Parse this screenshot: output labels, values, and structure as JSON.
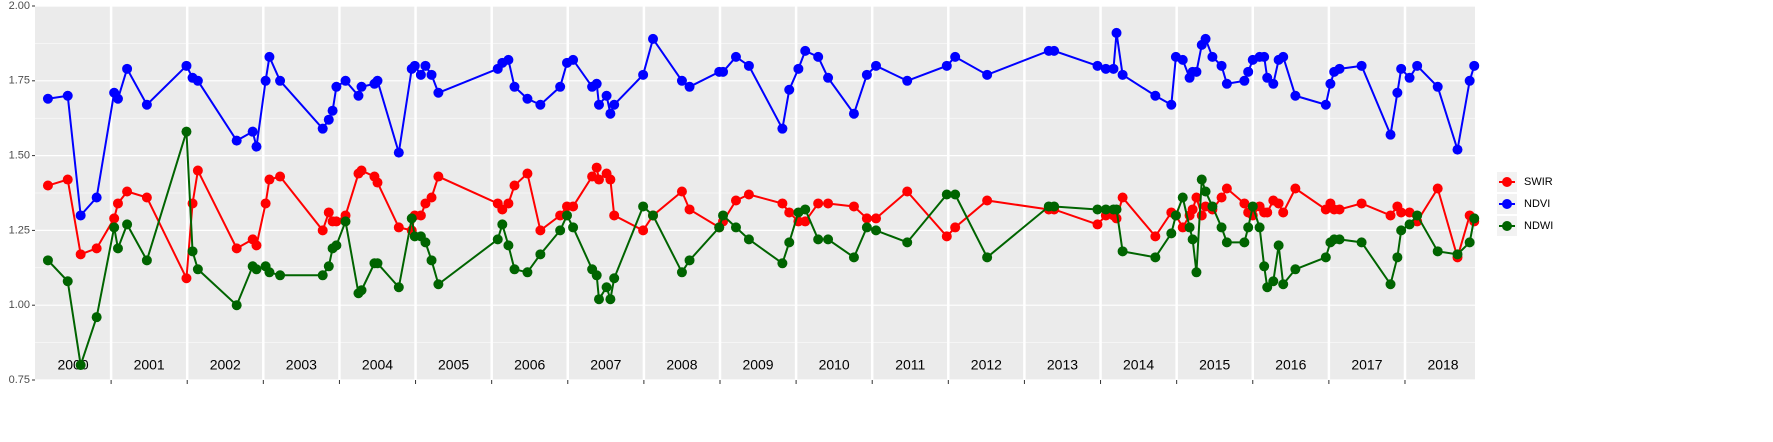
{
  "chart_data": {
    "type": "line",
    "x": [
      2000.17,
      2000.43,
      2000.6,
      2000.81,
      2001.04,
      2001.09,
      2001.21,
      2001.47,
      2001.99,
      2002.07,
      2002.14,
      2002.65,
      2002.86,
      2002.91,
      2003.03,
      2003.08,
      2003.22,
      2003.78,
      2003.86,
      2003.91,
      2003.96,
      2004.08,
      2004.25,
      2004.29,
      2004.46,
      2004.5,
      2004.78,
      2004.95,
      2004.99,
      2005.07,
      2005.13,
      2005.21,
      2005.3,
      2006.08,
      2006.14,
      2006.22,
      2006.3,
      2006.47,
      2006.64,
      2006.9,
      2006.99,
      2007.07,
      2007.32,
      2007.38,
      2007.41,
      2007.51,
      2007.56,
      2007.61,
      2007.99,
      2008.12,
      2008.5,
      2008.6,
      2008.99,
      2009.04,
      2009.21,
      2009.38,
      2009.82,
      2009.91,
      2010.03,
      2010.12,
      2010.29,
      2010.42,
      2010.76,
      2010.93,
      2011.05,
      2011.46,
      2011.98,
      2012.09,
      2012.51,
      2013.32,
      2013.39,
      2013.96,
      2014.07,
      2014.17,
      2014.21,
      2014.29,
      2014.72,
      2014.93,
      2014.99,
      2015.08,
      2015.17,
      2015.21,
      2015.26,
      2015.33,
      2015.38,
      2015.47,
      2015.59,
      2015.66,
      2015.89,
      2015.94,
      2016.0,
      2016.09,
      2016.15,
      2016.19,
      2016.27,
      2016.34,
      2016.4,
      2016.56,
      2016.96,
      2017.02,
      2017.07,
      2017.14,
      2017.43,
      2017.81,
      2017.9,
      2017.95,
      2018.06,
      2018.16,
      2018.43,
      2018.69,
      2018.85,
      2018.91
    ],
    "series": [
      {
        "name": "SWIR",
        "color": "#ff0000",
        "values": [
          1.4,
          1.42,
          1.17,
          1.19,
          1.29,
          1.34,
          1.38,
          1.36,
          1.09,
          1.34,
          1.45,
          1.19,
          1.22,
          1.2,
          1.34,
          1.42,
          1.43,
          1.25,
          1.31,
          1.28,
          1.28,
          1.3,
          1.44,
          1.45,
          1.43,
          1.41,
          1.26,
          1.25,
          1.3,
          1.3,
          1.34,
          1.36,
          1.43,
          1.34,
          1.32,
          1.34,
          1.4,
          1.44,
          1.25,
          1.3,
          1.33,
          1.33,
          1.43,
          1.46,
          1.42,
          1.44,
          1.42,
          1.3,
          1.25,
          1.3,
          1.38,
          1.32,
          1.26,
          1.28,
          1.35,
          1.37,
          1.34,
          1.31,
          1.28,
          1.28,
          1.34,
          1.34,
          1.33,
          1.29,
          1.29,
          1.38,
          1.23,
          1.26,
          1.35,
          1.32,
          1.32,
          1.27,
          1.3,
          1.3,
          1.29,
          1.36,
          1.23,
          1.31,
          1.3,
          1.26,
          1.3,
          1.32,
          1.36,
          1.3,
          1.33,
          1.32,
          1.36,
          1.39,
          1.34,
          1.31,
          1.3,
          1.33,
          1.31,
          1.31,
          1.35,
          1.34,
          1.31,
          1.39,
          1.32,
          1.34,
          1.32,
          1.32,
          1.34,
          1.3,
          1.33,
          1.31,
          1.31,
          1.28,
          1.39,
          1.16,
          1.3,
          1.28
        ]
      },
      {
        "name": "NDVI",
        "color": "#0000ff",
        "values": [
          1.69,
          1.7,
          1.3,
          1.36,
          1.71,
          1.69,
          1.79,
          1.67,
          1.8,
          1.76,
          1.75,
          1.55,
          1.58,
          1.53,
          1.75,
          1.83,
          1.75,
          1.59,
          1.62,
          1.65,
          1.73,
          1.75,
          1.7,
          1.73,
          1.74,
          1.75,
          1.51,
          1.79,
          1.8,
          1.77,
          1.8,
          1.77,
          1.71,
          1.79,
          1.81,
          1.82,
          1.73,
          1.69,
          1.67,
          1.73,
          1.81,
          1.82,
          1.73,
          1.74,
          1.67,
          1.7,
          1.64,
          1.67,
          1.77,
          1.89,
          1.75,
          1.73,
          1.78,
          1.78,
          1.83,
          1.8,
          1.59,
          1.72,
          1.79,
          1.85,
          1.83,
          1.76,
          1.64,
          1.77,
          1.8,
          1.75,
          1.8,
          1.83,
          1.77,
          1.85,
          1.85,
          1.8,
          1.79,
          1.79,
          1.91,
          1.77,
          1.7,
          1.67,
          1.83,
          1.82,
          1.76,
          1.78,
          1.78,
          1.87,
          1.89,
          1.83,
          1.8,
          1.74,
          1.75,
          1.78,
          1.82,
          1.83,
          1.83,
          1.76,
          1.74,
          1.82,
          1.83,
          1.7,
          1.67,
          1.74,
          1.78,
          1.79,
          1.8,
          1.57,
          1.71,
          1.79,
          1.76,
          1.8,
          1.73,
          1.52,
          1.75,
          1.8
        ]
      },
      {
        "name": "NDWI",
        "color": "#006400",
        "values": [
          1.15,
          1.08,
          0.8,
          0.96,
          1.26,
          1.19,
          1.27,
          1.15,
          1.58,
          1.18,
          1.12,
          1.0,
          1.13,
          1.12,
          1.13,
          1.11,
          1.1,
          1.1,
          1.13,
          1.19,
          1.2,
          1.28,
          1.04,
          1.05,
          1.14,
          1.14,
          1.06,
          1.29,
          1.23,
          1.23,
          1.21,
          1.15,
          1.07,
          1.22,
          1.27,
          1.2,
          1.12,
          1.11,
          1.17,
          1.25,
          1.3,
          1.26,
          1.12,
          1.1,
          1.02,
          1.06,
          1.02,
          1.09,
          1.33,
          1.3,
          1.11,
          1.15,
          1.26,
          1.3,
          1.26,
          1.22,
          1.14,
          1.21,
          1.31,
          1.32,
          1.22,
          1.22,
          1.16,
          1.26,
          1.25,
          1.21,
          1.37,
          1.37,
          1.16,
          1.33,
          1.33,
          1.32,
          1.32,
          1.32,
          1.32,
          1.18,
          1.16,
          1.24,
          1.3,
          1.36,
          1.26,
          1.22,
          1.11,
          1.42,
          1.38,
          1.33,
          1.26,
          1.21,
          1.21,
          1.26,
          1.33,
          1.26,
          1.13,
          1.06,
          1.08,
          1.2,
          1.07,
          1.12,
          1.16,
          1.21,
          1.22,
          1.22,
          1.21,
          1.07,
          1.16,
          1.25,
          1.27,
          1.3,
          1.18,
          1.17,
          1.21,
          1.29
        ]
      }
    ],
    "annotations": [
      "2000",
      "2001",
      "2002",
      "2003",
      "2004",
      "2005",
      "2006",
      "2007",
      "2008",
      "2009",
      "2010",
      "2011",
      "2012",
      "2013",
      "2014",
      "2015",
      "2016",
      "2017",
      "2018"
    ],
    "xlim": [
      2000,
      2018.92
    ],
    "xticks": [
      2001,
      2002,
      2003,
      2004,
      2005,
      2006,
      2007,
      2008,
      2009,
      2010,
      2011,
      2012,
      2013,
      2014,
      2015,
      2016,
      2017,
      2018
    ],
    "ylim": [
      0.75,
      2.0
    ],
    "yticks": [
      {
        "value": 0.75,
        "label": "0.75"
      },
      {
        "value": 1.0,
        "label": "1.00"
      },
      1.25,
      {
        "value": 1.5,
        "label": "1.50"
      },
      1.75,
      {
        "value": 2.0,
        "label": "2.00"
      }
    ],
    "grid": true,
    "legend": "right"
  }
}
